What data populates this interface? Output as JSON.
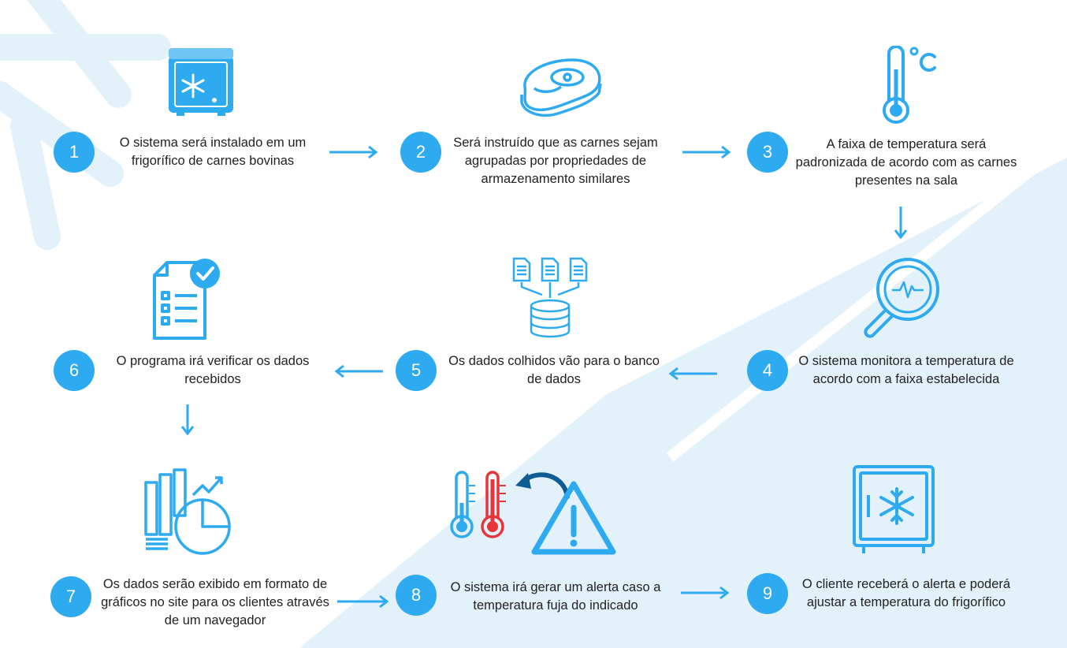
{
  "colors": {
    "accent": "#2eaaf0",
    "alert": "#e8343b",
    "text": "#222222",
    "background_shape": "#e3f1fb"
  },
  "steps": [
    {
      "number": "1",
      "text": "O sistema será instalado em um frigorífico de carnes bovinas",
      "icon": "freezer-icon"
    },
    {
      "number": "2",
      "text": "Será instruído que as carnes sejam agrupadas por propriedades de armazenamento similares",
      "icon": "steak-icon"
    },
    {
      "number": "3",
      "text": "A faixa de temperatura será padronizada de acordo com as carnes presentes na sala",
      "icon": "thermometer-celsius-icon"
    },
    {
      "number": "4",
      "text": "O sistema monitora a temperatura de acordo com a faixa estabelecida",
      "icon": "magnifier-pulse-icon"
    },
    {
      "number": "5",
      "text": "Os dados colhidos vão para o banco de dados",
      "icon": "documents-database-icon"
    },
    {
      "number": "6",
      "text": "O programa irá verificar os dados recebidos",
      "icon": "checklist-icon"
    },
    {
      "number": "7",
      "text": "Os dados serão exibido em formato de gráficos no site para os clientes através de um navegador",
      "icon": "charts-icon"
    },
    {
      "number": "8",
      "text": "O sistema irá gerar um alerta caso a temperatura fuja do indicado",
      "icon": "thermometers-warning-icon"
    },
    {
      "number": "9",
      "text": "O cliente receberá o alerta e poderá ajustar a temperatura do frigorífico",
      "icon": "fridge-icon"
    }
  ],
  "arrows": [
    {
      "from": "1",
      "to": "2",
      "direction": "right"
    },
    {
      "from": "2",
      "to": "3",
      "direction": "right"
    },
    {
      "from": "3",
      "to": "4",
      "direction": "down"
    },
    {
      "from": "4",
      "to": "5",
      "direction": "left"
    },
    {
      "from": "5",
      "to": "6",
      "direction": "left"
    },
    {
      "from": "6",
      "to": "7",
      "direction": "down"
    },
    {
      "from": "7",
      "to": "8",
      "direction": "right"
    },
    {
      "from": "8",
      "to": "9",
      "direction": "right"
    }
  ],
  "units": {
    "celsius": "°C"
  }
}
